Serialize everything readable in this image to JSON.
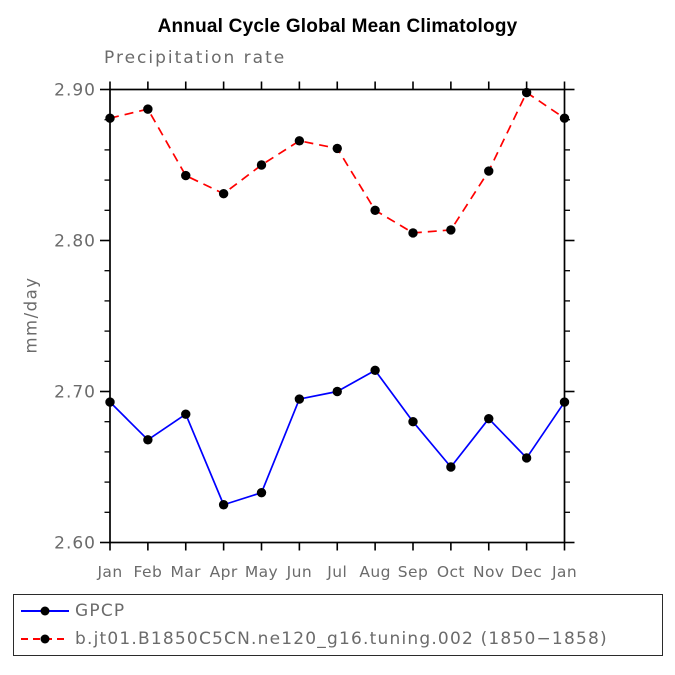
{
  "title": "Annual Cycle Global Mean Climatology",
  "chart_data": {
    "type": "line",
    "title": "Annual Cycle Global Mean Climatology",
    "subtitle": "Precipitation rate",
    "ylabel": "mm/day",
    "xlabel": "",
    "categories": [
      "Jan",
      "Feb",
      "Mar",
      "Apr",
      "May",
      "Jun",
      "Jul",
      "Aug",
      "Sep",
      "Oct",
      "Nov",
      "Dec",
      "Jan"
    ],
    "ylim": [
      2.6,
      2.9
    ],
    "yticks": [
      2.6,
      2.7,
      2.8,
      2.9
    ],
    "ytick_labels": [
      "2.60",
      "2.70",
      "2.80",
      "2.90"
    ],
    "y_minor_step": 0.02,
    "grid": false,
    "legend_position": "bottom-left",
    "series": [
      {
        "name": "GPCP",
        "color": "#0000ff",
        "line_style": "solid",
        "marker": "filled-circle",
        "marker_color": "#000000",
        "values": [
          2.693,
          2.668,
          2.685,
          2.625,
          2.633,
          2.695,
          2.7,
          2.714,
          2.68,
          2.65,
          2.682,
          2.656,
          2.693
        ]
      },
      {
        "name": "b.jt01.B1850C5CN.ne120_g16.tuning.002 (1850−1858)",
        "color": "#ff0000",
        "line_style": "dashed",
        "marker": "filled-circle",
        "marker_color": "#000000",
        "values": [
          2.881,
          2.887,
          2.843,
          2.831,
          2.85,
          2.866,
          2.861,
          2.82,
          2.805,
          2.807,
          2.846,
          2.898,
          2.881
        ]
      }
    ]
  },
  "colors": {
    "axis": "#000000",
    "text_gray": "#6b6b6b",
    "background": "#ffffff",
    "legend_border": "#2b2b2b"
  }
}
